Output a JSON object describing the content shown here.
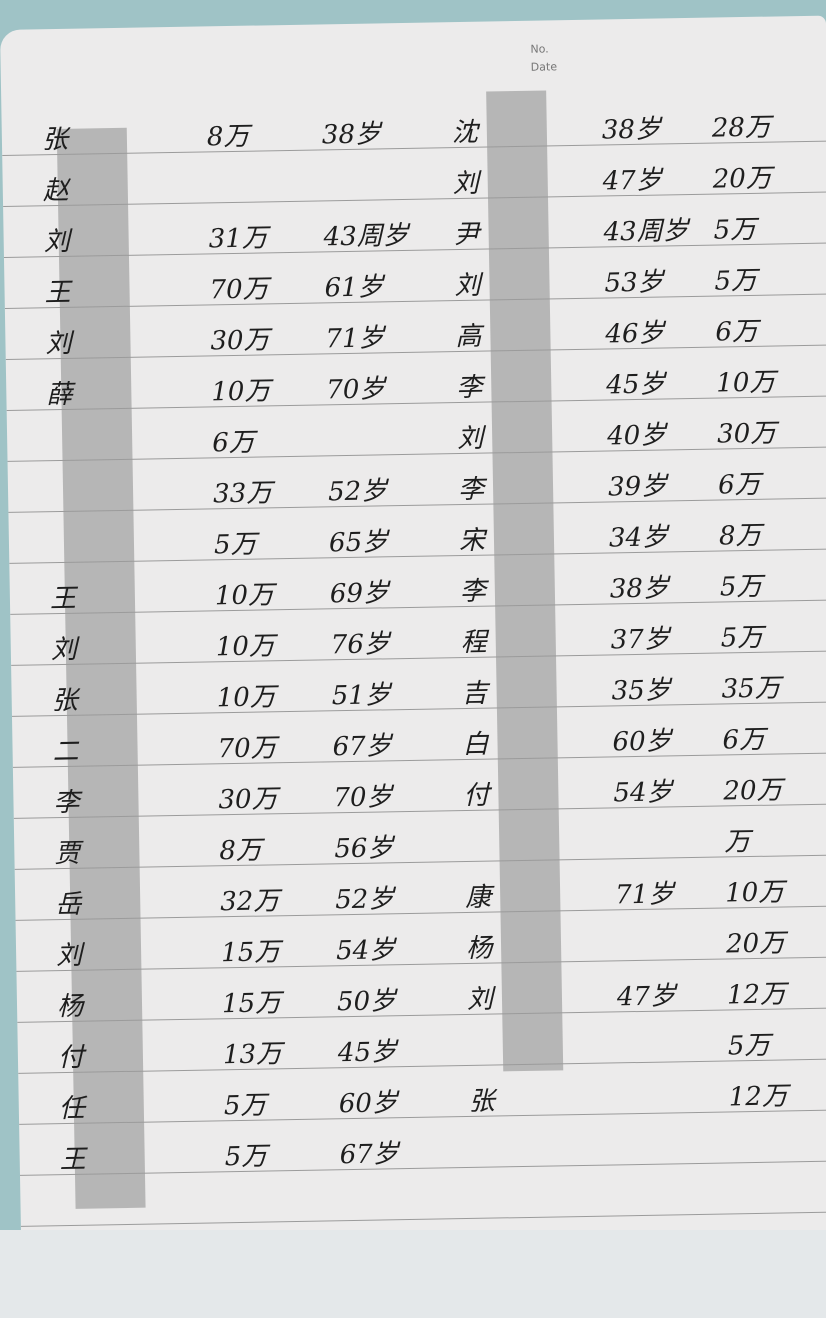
{
  "header": {
    "no": "No.",
    "date": "Date"
  },
  "left_rows": [
    {
      "name": "张",
      "amount": "8万",
      "age": "38岁"
    },
    {
      "name": "赵"
    },
    {
      "name": "刘",
      "amount": "31万",
      "age": "43周岁"
    },
    {
      "name": "王",
      "amount": "70万",
      "age": "61岁"
    },
    {
      "name": "刘",
      "amount": "30万",
      "age": "71岁"
    },
    {
      "name": "薛",
      "amount": "10万",
      "age": "70岁"
    },
    {
      "amount": "6万"
    },
    {
      "amount": "33万",
      "age": "52岁"
    },
    {
      "amount": "5万",
      "age": "65岁"
    },
    {
      "name": "王",
      "amount": "10万",
      "age": "69岁"
    },
    {
      "name": "刘",
      "amount": "10万",
      "age": "76岁"
    },
    {
      "name": "张",
      "amount": "10万",
      "age": "51岁"
    },
    {
      "name": "二",
      "amount": "70万",
      "age": "67岁"
    },
    {
      "name": "李",
      "amount": "30万",
      "age": "70岁"
    },
    {
      "name": "贾",
      "amount": "8万",
      "age": "56岁"
    },
    {
      "name": "岳",
      "amount": "32万",
      "age": "52岁"
    },
    {
      "name": "刘",
      "amount": "15万",
      "age": "54岁"
    },
    {
      "name": "杨",
      "amount": "15万",
      "age": "50岁"
    },
    {
      "name": "付",
      "amount": "13万",
      "age": "45岁"
    },
    {
      "name": "任",
      "amount": "5万",
      "age": "60岁"
    },
    {
      "name": "王",
      "amount": "5万",
      "age": "67岁"
    }
  ],
  "right_rows": [
    {
      "name": "沈",
      "age": "38岁",
      "amount": "28万"
    },
    {
      "name": "刘",
      "age": "47岁",
      "amount": "20万"
    },
    {
      "name": "尹",
      "age": "43周岁",
      "amount": "5万"
    },
    {
      "name": "刘",
      "age": "53岁",
      "amount": "5万"
    },
    {
      "name": "高",
      "age": "46岁",
      "amount": "6万"
    },
    {
      "name": "李",
      "age": "45岁",
      "amount": "10万"
    },
    {
      "name": "刘",
      "age": "40岁",
      "amount": "30万"
    },
    {
      "name": "李",
      "age": "39岁",
      "amount": "6万"
    },
    {
      "name": "宋",
      "age": "34岁",
      "amount": "8万"
    },
    {
      "name": "李",
      "age": "38岁",
      "amount": "5万"
    },
    {
      "name": "程",
      "age": "37岁",
      "amount": "5万"
    },
    {
      "name": "吉",
      "age": "35岁",
      "amount": "35万"
    },
    {
      "name": "白",
      "age": "60岁",
      "amount": "6万"
    },
    {
      "name": "付",
      "age": "54岁",
      "amount": "20万"
    },
    {
      "amount": "万"
    },
    {
      "name": "康",
      "age": "71岁",
      "amount": "10万"
    },
    {
      "name": "杨",
      "amount": "20万"
    },
    {
      "name": "刘",
      "age": "47岁",
      "amount": "12万"
    },
    {
      "amount": "5万"
    },
    {
      "name": "张",
      "amount": "12万"
    }
  ]
}
